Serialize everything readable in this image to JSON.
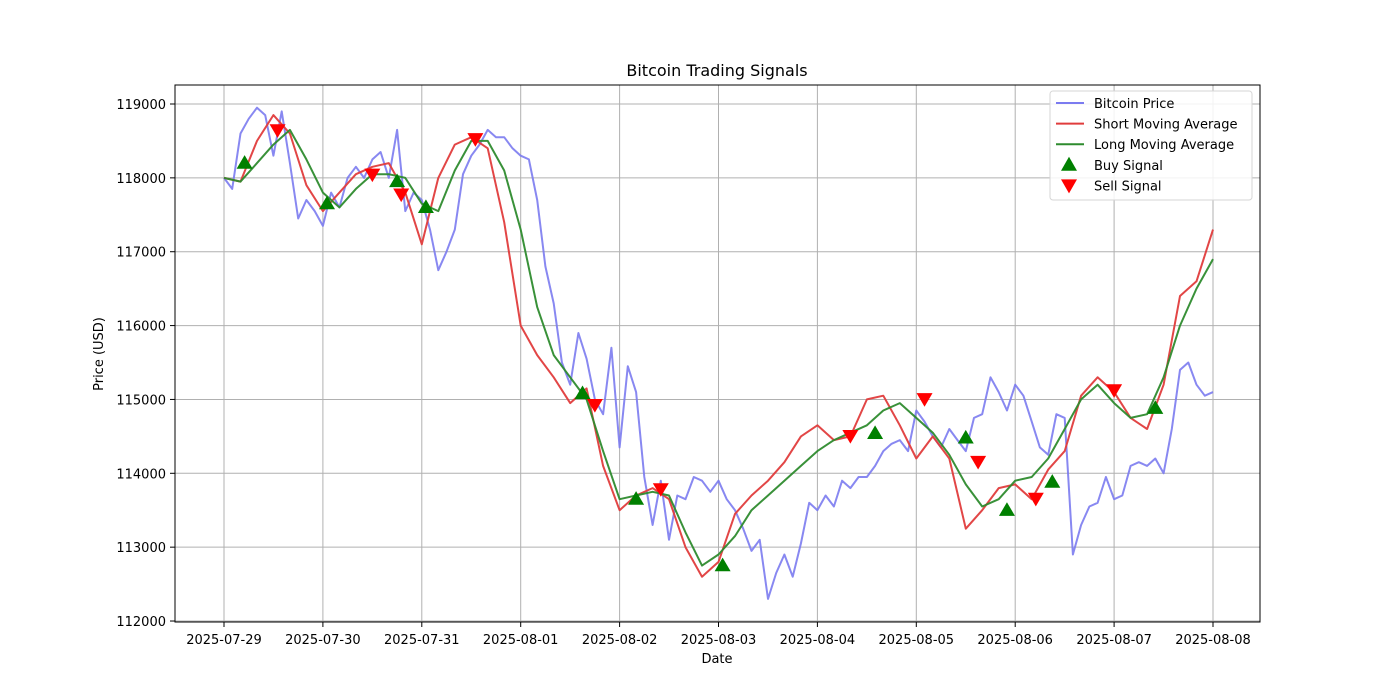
{
  "chart_data": {
    "type": "line",
    "title": "Bitcoin Trading Signals",
    "xlabel": "Date",
    "ylabel": "Price (USD)",
    "ylim": [
      111950,
      119270
    ],
    "xlim": [
      "2025-07-28T12:00",
      "2025-08-08T12:00"
    ],
    "grid": true,
    "legend_position": "upper right",
    "x_ticks": [
      "2025-07-29",
      "2025-07-30",
      "2025-07-31",
      "2025-08-01",
      "2025-08-02",
      "2025-08-03",
      "2025-08-04",
      "2025-08-05",
      "2025-08-06",
      "2025-08-07",
      "2025-08-08"
    ],
    "y_ticks": [
      112000,
      113000,
      114000,
      115000,
      116000,
      117000,
      118000,
      119000
    ],
    "series": [
      {
        "name": "Bitcoin Price",
        "color": "#7b7bf0",
        "hours_from_start": [
          0,
          2,
          4,
          6,
          8,
          10,
          12,
          14,
          16,
          18,
          20,
          22,
          24,
          26,
          28,
          30,
          32,
          34,
          36,
          38,
          40,
          42,
          44,
          46,
          48,
          50,
          52,
          54,
          56,
          58,
          60,
          62,
          64,
          66,
          68,
          70,
          72,
          74,
          76,
          78,
          80,
          82,
          84,
          86,
          88,
          90,
          92,
          94,
          96,
          98,
          100,
          102,
          104,
          106,
          108,
          110,
          112,
          114,
          116,
          118,
          120,
          122,
          124,
          126,
          128,
          130,
          132,
          134,
          136,
          138,
          140,
          142,
          144,
          146,
          148,
          150,
          152,
          154,
          156,
          158,
          160,
          162,
          164,
          166,
          168,
          170,
          172,
          174,
          176,
          178,
          180,
          182,
          184,
          186,
          188,
          190,
          192,
          194,
          196,
          198,
          200,
          202,
          204,
          206,
          208,
          210,
          212,
          214,
          216,
          218,
          220,
          222,
          224,
          226,
          228,
          230,
          232,
          234,
          236,
          238,
          240
        ],
        "values": [
          118000,
          117850,
          118600,
          118800,
          118950,
          118850,
          118300,
          118900,
          118200,
          117450,
          117700,
          117550,
          117350,
          117800,
          117600,
          118000,
          118150,
          118000,
          118250,
          118350,
          118000,
          118650,
          117550,
          117800,
          117700,
          117300,
          116750,
          117000,
          117300,
          118050,
          118300,
          118450,
          118650,
          118550,
          118550,
          118400,
          118300,
          118250,
          117700,
          116800,
          116300,
          115500,
          115200,
          115900,
          115550,
          115000,
          114800,
          115700,
          114350,
          115450,
          115100,
          113950,
          113300,
          113900,
          113100,
          113700,
          113650,
          113950,
          113900,
          113750,
          113900,
          113650,
          113500,
          113250,
          112950,
          113100,
          112300,
          112650,
          112900,
          112600,
          113050,
          113600,
          113500,
          113700,
          113550,
          113900,
          113800,
          113950,
          113950,
          114100,
          114300,
          114400,
          114450,
          114300,
          114850,
          114700,
          114500,
          114350,
          114600,
          114450,
          114300,
          114750,
          114800,
          115300,
          115100,
          114850,
          115200,
          115050,
          114700,
          114350,
          114250,
          114800,
          114750,
          112900,
          113300,
          113550,
          113600,
          113950,
          113650,
          113700,
          114100,
          114150,
          114100,
          114200,
          114000,
          114600,
          115400,
          115500,
          115200,
          115050,
          115100
        ]
      },
      {
        "name": "Short Moving Average",
        "color": "#e03c3c",
        "hours_from_start": [
          0,
          4,
          8,
          12,
          16,
          20,
          24,
          28,
          32,
          36,
          40,
          44,
          48,
          52,
          56,
          60,
          64,
          68,
          72,
          76,
          80,
          84,
          88,
          92,
          96,
          100,
          104,
          108,
          112,
          116,
          120,
          124,
          128,
          132,
          136,
          140,
          144,
          148,
          152,
          156,
          160,
          164,
          168,
          172,
          176,
          180,
          184,
          188,
          192,
          196,
          200,
          204,
          208,
          212,
          216,
          220,
          224,
          228,
          232,
          236,
          240
        ],
        "values": [
          118000,
          117950,
          118500,
          118850,
          118600,
          117900,
          117550,
          117800,
          118050,
          118150,
          118200,
          117800,
          117100,
          118000,
          118450,
          118550,
          118400,
          117400,
          116000,
          115600,
          115300,
          114950,
          115150,
          114100,
          113500,
          113700,
          113800,
          113650,
          113000,
          112600,
          112800,
          113450,
          113700,
          113900,
          114150,
          114500,
          114650,
          114450,
          114500,
          115000,
          115050,
          114650,
          114200,
          114500,
          114200,
          113250,
          113500,
          113800,
          113850,
          113650,
          114050,
          114300,
          115050,
          115300,
          115100,
          114750,
          114600,
          115200,
          116400,
          116600,
          117300
        ]
      },
      {
        "name": "Long Moving Average",
        "color": "#2e8b2e",
        "hours_from_start": [
          0,
          4,
          8,
          12,
          16,
          20,
          24,
          28,
          32,
          36,
          40,
          44,
          48,
          52,
          56,
          60,
          64,
          68,
          72,
          76,
          80,
          84,
          88,
          92,
          96,
          100,
          104,
          108,
          112,
          116,
          120,
          124,
          128,
          132,
          136,
          140,
          144,
          148,
          152,
          156,
          160,
          164,
          168,
          172,
          176,
          180,
          184,
          188,
          192,
          196,
          200,
          204,
          208,
          212,
          216,
          220,
          224,
          228,
          232,
          236,
          240
        ],
        "values": [
          118000,
          117950,
          118200,
          118450,
          118650,
          118250,
          117800,
          117600,
          117850,
          118050,
          118050,
          118000,
          117650,
          117550,
          118100,
          118500,
          118500,
          118100,
          117300,
          116250,
          115600,
          115300,
          115000,
          114300,
          113650,
          113700,
          113750,
          113700,
          113200,
          112750,
          112900,
          113150,
          113500,
          113700,
          113900,
          114100,
          114300,
          114450,
          114550,
          114650,
          114850,
          114950,
          114750,
          114550,
          114250,
          113850,
          113550,
          113650,
          113900,
          113950,
          114200,
          114600,
          115000,
          115200,
          114950,
          114750,
          114800,
          115300,
          116000,
          116500,
          116900
        ]
      }
    ],
    "signals": [
      {
        "type": "Buy Signal",
        "color": "#008000",
        "hours_from_start": 5,
        "price": 118200
      },
      {
        "type": "Sell Signal",
        "color": "#ff0000",
        "hours_from_start": 13,
        "price": 118650
      },
      {
        "type": "Buy Signal",
        "color": "#008000",
        "hours_from_start": 25,
        "price": 117650
      },
      {
        "type": "Sell Signal",
        "color": "#ff0000",
        "hours_from_start": 36,
        "price": 118050
      },
      {
        "type": "Buy Signal",
        "color": "#008000",
        "hours_from_start": 42,
        "price": 117950
      },
      {
        "type": "Sell Signal",
        "color": "#ff0000",
        "hours_from_start": 43,
        "price": 117780
      },
      {
        "type": "Buy Signal",
        "color": "#008000",
        "hours_from_start": 49,
        "price": 117600
      },
      {
        "type": "Sell Signal",
        "color": "#ff0000",
        "hours_from_start": 61,
        "price": 118530
      },
      {
        "type": "Buy Signal",
        "color": "#008000",
        "hours_from_start": 87,
        "price": 115080
      },
      {
        "type": "Sell Signal",
        "color": "#ff0000",
        "hours_from_start": 90,
        "price": 114930
      },
      {
        "type": "Buy Signal",
        "color": "#008000",
        "hours_from_start": 100,
        "price": 113650
      },
      {
        "type": "Sell Signal",
        "color": "#ff0000",
        "hours_from_start": 106,
        "price": 113790
      },
      {
        "type": "Buy Signal",
        "color": "#008000",
        "hours_from_start": 121,
        "price": 112750
      },
      {
        "type": "Sell Signal",
        "color": "#ff0000",
        "hours_from_start": 152,
        "price": 114510
      },
      {
        "type": "Buy Signal",
        "color": "#008000",
        "hours_from_start": 158,
        "price": 114540
      },
      {
        "type": "Sell Signal",
        "color": "#ff0000",
        "hours_from_start": 170,
        "price": 115010
      },
      {
        "type": "Buy Signal",
        "color": "#008000",
        "hours_from_start": 180,
        "price": 114480
      },
      {
        "type": "Sell Signal",
        "color": "#ff0000",
        "hours_from_start": 183,
        "price": 114160
      },
      {
        "type": "Buy Signal",
        "color": "#008000",
        "hours_from_start": 190,
        "price": 113500
      },
      {
        "type": "Sell Signal",
        "color": "#ff0000",
        "hours_from_start": 197,
        "price": 113660
      },
      {
        "type": "Buy Signal",
        "color": "#008000",
        "hours_from_start": 201,
        "price": 113880
      },
      {
        "type": "Sell Signal",
        "color": "#ff0000",
        "hours_from_start": 216,
        "price": 115130
      },
      {
        "type": "Buy Signal",
        "color": "#008000",
        "hours_from_start": 226,
        "price": 114880
      }
    ]
  },
  "legend": {
    "items": [
      {
        "label": "Bitcoin Price",
        "kind": "line",
        "color": "#7b7bf0"
      },
      {
        "label": "Short Moving Average",
        "kind": "line",
        "color": "#e03c3c"
      },
      {
        "label": "Long Moving Average",
        "kind": "line",
        "color": "#2e8b2e"
      },
      {
        "label": "Buy Signal",
        "kind": "triangle-up",
        "color": "#008000"
      },
      {
        "label": "Sell Signal",
        "kind": "triangle-down",
        "color": "#ff0000"
      }
    ]
  }
}
